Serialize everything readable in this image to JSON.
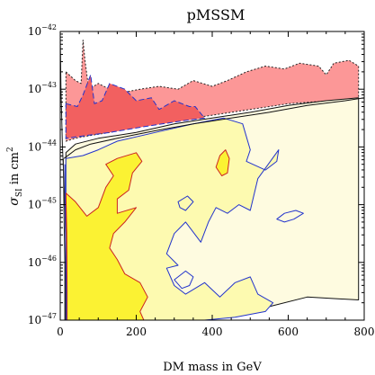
{
  "chart_data": {
    "type": "area",
    "title": "pMSSM",
    "xlabel": "DM mass in GeV",
    "ylabel": "σ_SI in cm²",
    "ylabel_parts": {
      "symbol": "σ",
      "subscript": "SI",
      "text": " in cm",
      "superscript": "2"
    },
    "xlim": [
      0,
      800
    ],
    "ylim_log10": [
      -47,
      -42
    ],
    "yscale": "log",
    "grid": false,
    "x_ticks": [
      {
        "value": 0,
        "label": "0"
      },
      {
        "value": 200,
        "label": "200"
      },
      {
        "value": 400,
        "label": "400"
      },
      {
        "value": 600,
        "label": "600"
      },
      {
        "value": 800,
        "label": "800"
      }
    ],
    "y_ticks": [
      {
        "exp": -47,
        "base": "10",
        "sup": "−47"
      },
      {
        "exp": -46,
        "base": "10",
        "sup": "−46"
      },
      {
        "exp": -45,
        "base": "10",
        "sup": "−45"
      },
      {
        "exp": -44,
        "base": "10",
        "sup": "−44"
      },
      {
        "exp": -43,
        "base": "10",
        "sup": "−43"
      },
      {
        "exp": -42,
        "base": "10",
        "sup": "−42"
      }
    ],
    "regions": [
      {
        "id": "excluded-outer",
        "fill": "#fc9797",
        "stroke": "#222222",
        "stroke_dash": "2 2",
        "points": [
          [
            15,
            -42.7
          ],
          [
            40,
            -42.85
          ],
          [
            55,
            -42.9
          ],
          [
            60,
            -42.15
          ],
          [
            65,
            -42.5
          ],
          [
            75,
            -43.0
          ],
          [
            100,
            -42.9
          ],
          [
            130,
            -43.0
          ],
          [
            170,
            -43.05
          ],
          [
            210,
            -43.0
          ],
          [
            260,
            -42.95
          ],
          [
            310,
            -43.0
          ],
          [
            350,
            -42.85
          ],
          [
            400,
            -42.95
          ],
          [
            440,
            -42.85
          ],
          [
            490,
            -42.7
          ],
          [
            540,
            -42.6
          ],
          [
            590,
            -42.65
          ],
          [
            630,
            -42.55
          ],
          [
            680,
            -42.6
          ],
          [
            700,
            -42.75
          ],
          [
            720,
            -42.55
          ],
          [
            760,
            -42.5
          ],
          [
            785,
            -42.6
          ],
          [
            785,
            -43.17
          ],
          [
            710,
            -43.2
          ],
          [
            600,
            -43.25
          ],
          [
            500,
            -43.35
          ],
          [
            400,
            -43.45
          ],
          [
            300,
            -43.55
          ],
          [
            200,
            -43.65
          ],
          [
            130,
            -43.75
          ],
          [
            80,
            -43.8
          ],
          [
            40,
            -43.85
          ],
          [
            15,
            -43.9
          ]
        ]
      },
      {
        "id": "excluded-inner",
        "fill": "#f26060",
        "stroke": "#2233cc",
        "stroke_dash": "6 3",
        "points": [
          [
            15,
            -43.25
          ],
          [
            45,
            -43.3
          ],
          [
            60,
            -43.1
          ],
          [
            80,
            -42.75
          ],
          [
            90,
            -43.25
          ],
          [
            110,
            -43.2
          ],
          [
            130,
            -42.9
          ],
          [
            170,
            -43.0
          ],
          [
            200,
            -43.2
          ],
          [
            240,
            -43.15
          ],
          [
            260,
            -43.35
          ],
          [
            300,
            -43.2
          ],
          [
            340,
            -43.3
          ],
          [
            355,
            -43.3
          ],
          [
            380,
            -43.5
          ],
          [
            320,
            -43.55
          ],
          [
            220,
            -43.65
          ],
          [
            130,
            -43.75
          ],
          [
            70,
            -43.8
          ],
          [
            15,
            -43.85
          ]
        ]
      },
      {
        "id": "scan-pale",
        "fill": "#fefbe0",
        "stroke": "#111111",
        "points": [
          [
            15,
            -44.1
          ],
          [
            40,
            -43.95
          ],
          [
            100,
            -43.85
          ],
          [
            200,
            -43.75
          ],
          [
            300,
            -43.6
          ],
          [
            400,
            -43.5
          ],
          [
            500,
            -43.4
          ],
          [
            600,
            -43.28
          ],
          [
            700,
            -43.2
          ],
          [
            785,
            -43.15
          ],
          [
            785,
            -46.65
          ],
          [
            650,
            -46.6
          ],
          [
            560,
            -46.75
          ],
          [
            500,
            -46.85
          ],
          [
            420,
            -46.9
          ],
          [
            350,
            -46.9
          ],
          [
            300,
            -46.95
          ],
          [
            250,
            -47.0
          ],
          [
            15,
            -47.0
          ]
        ]
      },
      {
        "id": "scan-light",
        "fill": "#fdfab0",
        "stroke": "#2233cc",
        "points": [
          [
            15,
            -44.2
          ],
          [
            60,
            -44.15
          ],
          [
            100,
            -44.05
          ],
          [
            150,
            -43.9
          ],
          [
            250,
            -43.75
          ],
          [
            350,
            -43.6
          ],
          [
            430,
            -43.5
          ],
          [
            480,
            -43.6
          ],
          [
            500,
            -44.05
          ],
          [
            490,
            -44.25
          ],
          [
            540,
            -44.4
          ],
          [
            570,
            -44.25
          ],
          [
            575,
            -44.05
          ],
          [
            520,
            -44.55
          ],
          [
            500,
            -45.1
          ],
          [
            470,
            -45.0
          ],
          [
            440,
            -45.15
          ],
          [
            410,
            -45.05
          ],
          [
            390,
            -45.3
          ],
          [
            370,
            -45.65
          ],
          [
            330,
            -45.3
          ],
          [
            300,
            -45.5
          ],
          [
            280,
            -45.85
          ],
          [
            310,
            -46.05
          ],
          [
            280,
            -46.1
          ],
          [
            300,
            -46.4
          ],
          [
            330,
            -46.55
          ],
          [
            380,
            -46.35
          ],
          [
            420,
            -46.6
          ],
          [
            460,
            -46.35
          ],
          [
            500,
            -46.25
          ],
          [
            520,
            -46.55
          ],
          [
            560,
            -46.7
          ],
          [
            540,
            -46.85
          ],
          [
            460,
            -46.95
          ],
          [
            380,
            -47.0
          ],
          [
            15,
            -47.0
          ]
        ]
      },
      {
        "id": "scan-yellow",
        "fill": "#fbf233",
        "stroke": "#cc2222",
        "points": [
          [
            15,
            -44.8
          ],
          [
            40,
            -44.95
          ],
          [
            70,
            -45.2
          ],
          [
            100,
            -45.05
          ],
          [
            120,
            -44.7
          ],
          [
            140,
            -44.5
          ],
          [
            120,
            -44.3
          ],
          [
            150,
            -44.2
          ],
          [
            200,
            -44.1
          ],
          [
            215,
            -44.25
          ],
          [
            190,
            -44.45
          ],
          [
            180,
            -44.75
          ],
          [
            150,
            -44.9
          ],
          [
            150,
            -45.15
          ],
          [
            200,
            -45.05
          ],
          [
            170,
            -45.3
          ],
          [
            140,
            -45.5
          ],
          [
            130,
            -45.75
          ],
          [
            150,
            -45.95
          ],
          [
            170,
            -46.2
          ],
          [
            210,
            -46.35
          ],
          [
            230,
            -46.6
          ],
          [
            210,
            -46.85
          ],
          [
            220,
            -47.0
          ],
          [
            15,
            -47.0
          ]
        ]
      },
      {
        "id": "scan-yellow-island",
        "fill": "#fbf233",
        "stroke": "#cc2222",
        "points": [
          [
            410,
            -44.35
          ],
          [
            420,
            -44.15
          ],
          [
            435,
            -44.05
          ],
          [
            445,
            -44.2
          ],
          [
            440,
            -44.45
          ],
          [
            425,
            -44.5
          ]
        ]
      }
    ],
    "open_contours": [
      {
        "id": "blue-island-1",
        "stroke": "#2233cc",
        "closed": true,
        "points": [
          [
            570,
            -45.25
          ],
          [
            590,
            -45.15
          ],
          [
            620,
            -45.1
          ],
          [
            640,
            -45.15
          ],
          [
            615,
            -45.25
          ],
          [
            590,
            -45.3
          ]
        ]
      },
      {
        "id": "blue-island-2",
        "stroke": "#2233cc",
        "closed": true,
        "points": [
          [
            310,
            -44.95
          ],
          [
            335,
            -44.85
          ],
          [
            350,
            -44.95
          ],
          [
            330,
            -45.1
          ],
          [
            315,
            -45.05
          ]
        ]
      },
      {
        "id": "blue-island-3",
        "stroke": "#2233cc",
        "closed": true,
        "points": [
          [
            300,
            -46.3
          ],
          [
            330,
            -46.15
          ],
          [
            350,
            -46.25
          ],
          [
            340,
            -46.4
          ],
          [
            320,
            -46.45
          ]
        ]
      },
      {
        "id": "black-left-edge-1",
        "stroke": "#222222",
        "closed": false,
        "points": [
          [
            0,
            -42.1
          ],
          [
            2,
            -43.0
          ],
          [
            6,
            -44.0
          ],
          [
            12,
            -45.0
          ],
          [
            14,
            -45.5
          ],
          [
            14,
            -47.0
          ]
        ]
      },
      {
        "id": "black-left-edge-2",
        "stroke": "#222222",
        "closed": false,
        "points": [
          [
            8,
            -44.2
          ],
          [
            10,
            -45.2
          ],
          [
            12,
            -46.0
          ],
          [
            12,
            -47.0
          ]
        ]
      },
      {
        "id": "red-left-edge",
        "stroke": "#cc2222",
        "closed": false,
        "points": [
          [
            15,
            -44.8
          ],
          [
            17,
            -45.5
          ],
          [
            18,
            -46.5
          ],
          [
            18,
            -47.0
          ]
        ]
      },
      {
        "id": "blue-left-edge",
        "stroke": "#2233cc",
        "closed": false,
        "points": [
          [
            12,
            -44.3
          ],
          [
            14,
            -45.5
          ],
          [
            16,
            -46.5
          ],
          [
            16,
            -47.0
          ]
        ]
      },
      {
        "id": "exclusion-curve",
        "stroke": "#111111",
        "closed": false,
        "points": [
          [
            10,
            -44.2
          ],
          [
            40,
            -44.05
          ],
          [
            80,
            -43.95
          ],
          [
            150,
            -43.85
          ],
          [
            250,
            -43.72
          ],
          [
            350,
            -43.6
          ],
          [
            450,
            -43.5
          ],
          [
            550,
            -43.4
          ],
          [
            650,
            -43.28
          ],
          [
            750,
            -43.2
          ],
          [
            800,
            -43.15
          ]
        ]
      }
    ]
  }
}
